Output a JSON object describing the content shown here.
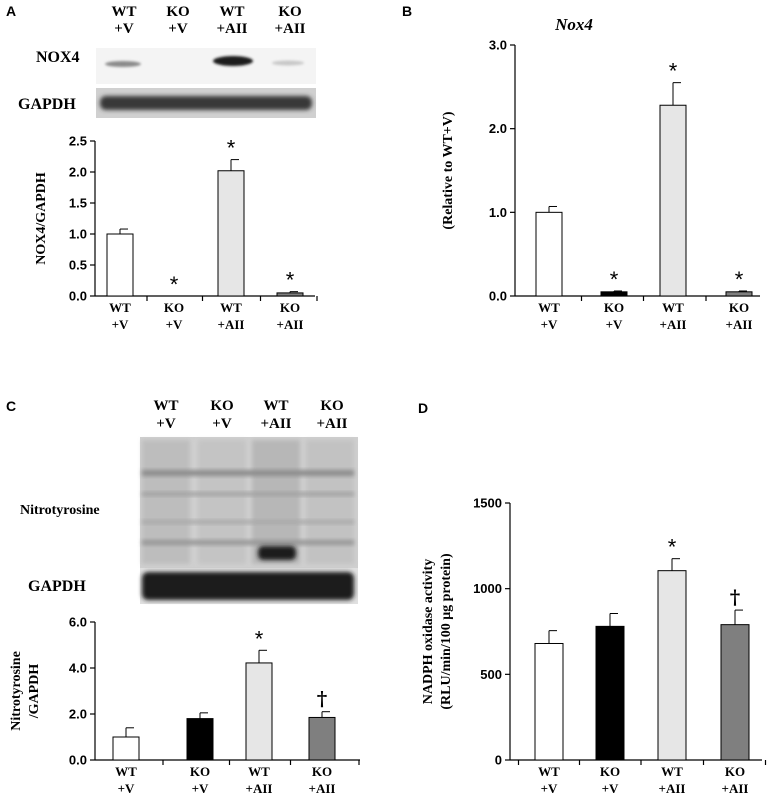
{
  "panels": {
    "A": {
      "letter": "A"
    },
    "B": {
      "letter": "B"
    },
    "C": {
      "letter": "C"
    },
    "D": {
      "letter": "D"
    }
  },
  "groups": [
    {
      "l1": "WT",
      "l2": "+V"
    },
    {
      "l1": "KO",
      "l2": "+V"
    },
    {
      "l1": "WT",
      "l2": "+AII"
    },
    {
      "l1": "KO",
      "l2": "+AII"
    }
  ],
  "blot_labels": {
    "nox4": "NOX4",
    "gapdh": "GAPDH",
    "nitrotyrosine": "Nitrotyrosine"
  },
  "colors": {
    "wt_v": "#ffffff",
    "ko_v": "#000000",
    "wt_aii": "#e6e6e6",
    "ko_aii": "#7f7f7f"
  },
  "chart_data": [
    {
      "panel": "A",
      "type": "bar",
      "title": "",
      "ylabel": "NOX4/GAPDH",
      "categories": [
        "WT +V",
        "KO +V",
        "WT +AII",
        "KO +AII"
      ],
      "values": [
        1.0,
        0.0,
        2.02,
        0.05
      ],
      "errors": [
        0.08,
        0.0,
        0.18,
        0.02
      ],
      "annotations": [
        "",
        "*",
        "*",
        "*"
      ],
      "ylim": [
        0,
        2.5
      ],
      "yticks": [
        "0.0",
        "0.5",
        "1.0",
        "1.5",
        "2.0",
        "2.5"
      ],
      "colors": [
        "#ffffff",
        "#000000",
        "#e6e6e6",
        "#7f7f7f"
      ]
    },
    {
      "panel": "B",
      "type": "bar",
      "title": "Nox4",
      "ylabel": "(Relative to WT+V)",
      "categories": [
        "WT +V",
        "KO +V",
        "WT +AII",
        "KO +AII"
      ],
      "values": [
        1.0,
        0.05,
        2.28,
        0.05
      ],
      "errors": [
        0.07,
        0.01,
        0.27,
        0.01
      ],
      "annotations": [
        "",
        "*",
        "*",
        "*"
      ],
      "ylim": [
        0,
        3.0
      ],
      "yticks": [
        "0.0",
        "1.0",
        "2.0",
        "3.0"
      ],
      "colors": [
        "#ffffff",
        "#000000",
        "#e6e6e6",
        "#7f7f7f"
      ]
    },
    {
      "panel": "C",
      "type": "bar",
      "title": "",
      "ylabel": "Nitrotyrosine /GAPDH",
      "categories": [
        "WT +V",
        "KO +V",
        "WT +AII",
        "KO +AII"
      ],
      "values": [
        1.0,
        1.8,
        4.22,
        1.85
      ],
      "errors": [
        0.4,
        0.25,
        0.55,
        0.25
      ],
      "annotations": [
        "",
        "",
        "*",
        "†"
      ],
      "ylim": [
        0,
        6.0
      ],
      "yticks": [
        "0.0",
        "2.0",
        "4.0",
        "6.0"
      ],
      "colors": [
        "#ffffff",
        "#000000",
        "#e6e6e6",
        "#7f7f7f"
      ]
    },
    {
      "panel": "D",
      "type": "bar",
      "title": "",
      "ylabel": "NADPH oxidase activity (RLU/min/100 μg protein)",
      "categories": [
        "WT +V",
        "KO +V",
        "WT +AII",
        "KO +AII"
      ],
      "values": [
        680,
        780,
        1105,
        790
      ],
      "errors": [
        75,
        75,
        70,
        85
      ],
      "annotations": [
        "",
        "",
        "*",
        "†"
      ],
      "ylim": [
        0,
        1500
      ],
      "yticks": [
        "0",
        "500",
        "1000",
        "1500"
      ],
      "colors": [
        "#ffffff",
        "#000000",
        "#e6e6e6",
        "#7f7f7f"
      ]
    }
  ]
}
